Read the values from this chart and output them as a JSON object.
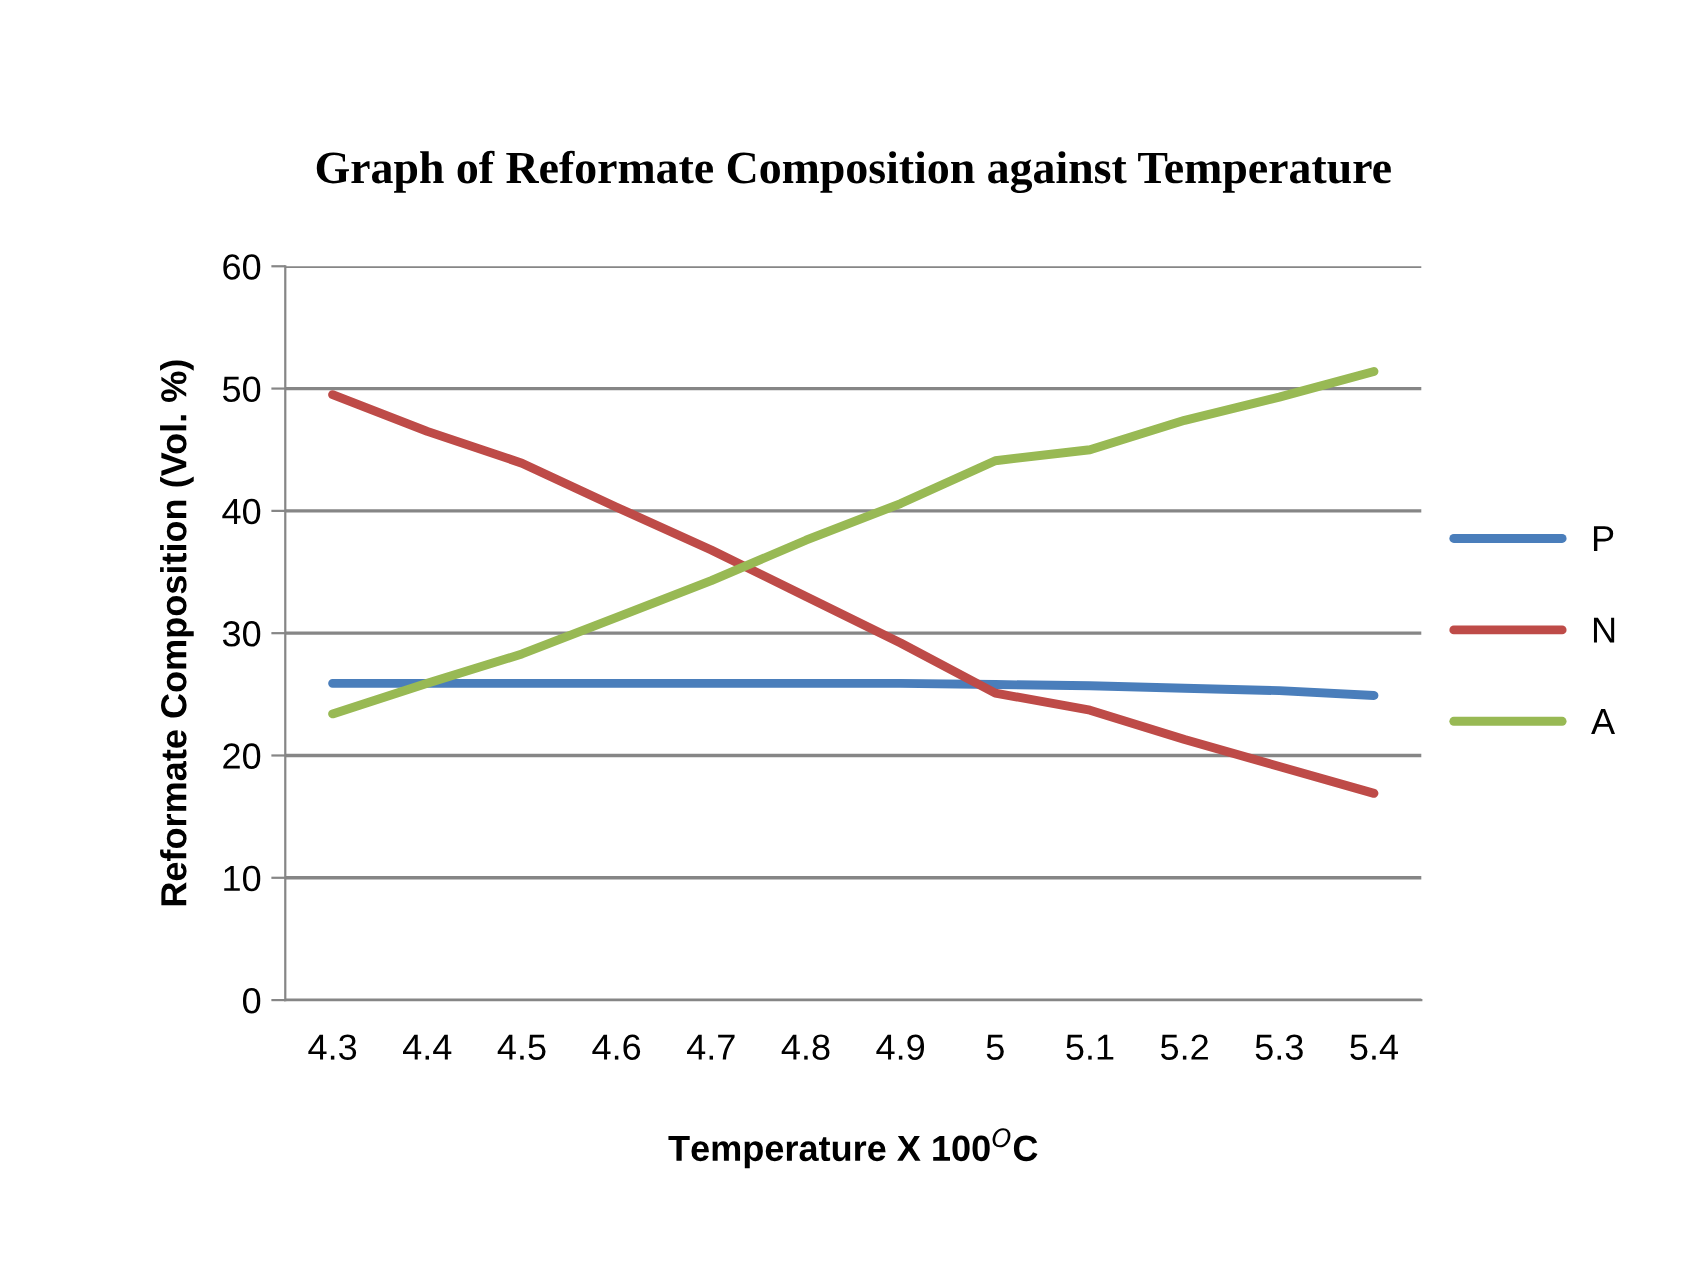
{
  "chart_data": {
    "type": "line",
    "title": "Graph of Reformate Composition against Temperature",
    "xlabel": "Temperature X 100$^{O}$C",
    "ylabel": "Reformate Composition (Vol. %)",
    "categories": [
      "4.3",
      "4.4",
      "4.5",
      "4.6",
      "4.7",
      "4.8",
      "4.9",
      "5",
      "5.1",
      "5.2",
      "5.3",
      "5.4"
    ],
    "series": [
      {
        "name": "P",
        "color": "#4a7ebb",
        "values": [
          25.9,
          25.9,
          25.9,
          25.9,
          25.9,
          25.9,
          25.9,
          25.8,
          25.7,
          25.5,
          25.3,
          24.9
        ]
      },
      {
        "name": "N",
        "color": "#be4b48",
        "values": [
          49.5,
          46.5,
          43.9,
          40.3,
          36.8,
          33.0,
          29.2,
          25.1,
          23.7,
          21.3,
          19.1,
          16.9
        ]
      },
      {
        "name": "A",
        "color": "#98b954",
        "values": [
          23.4,
          25.9,
          28.3,
          31.3,
          34.3,
          37.6,
          40.6,
          44.1,
          45.0,
          47.4,
          49.3,
          51.4
        ]
      }
    ],
    "ylim": [
      0,
      60
    ],
    "yticks": [
      0,
      10,
      20,
      30,
      40,
      50,
      60
    ],
    "grid": "y",
    "legend": "right",
    "marker": "none",
    "line_style": "solid"
  }
}
